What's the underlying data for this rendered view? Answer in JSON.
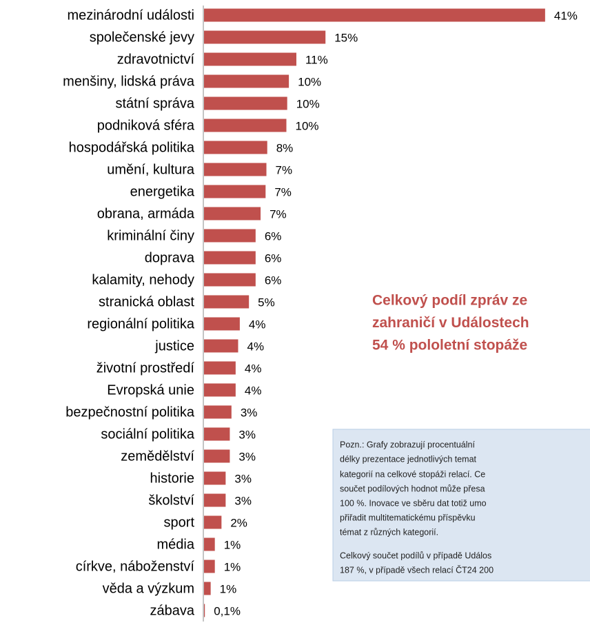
{
  "chart_data": {
    "type": "barh",
    "color": "#c0504d",
    "categories": [
      "mezinárodní události",
      "společenské jevy",
      "zdravotnictví",
      "menšiny, lidská práva",
      "státní správa",
      "podniková sféra",
      "hospodářská politika",
      "umění, kultura",
      "energetika",
      "obrana, armáda",
      "kriminální činy",
      "doprava",
      "kalamity, nehody",
      "stranická oblast",
      "regionální politika",
      "justice",
      "životní prostředí",
      "Evropská unie",
      "bezpečnostní politika",
      "sociální politika",
      "zemědělství",
      "historie",
      "školství",
      "sport",
      "média",
      "církve, náboženství",
      "věda a výzkum",
      "zábava"
    ],
    "values": [
      41,
      14.6,
      11.1,
      10.2,
      10.0,
      9.9,
      7.6,
      7.5,
      7.4,
      6.8,
      6.2,
      6.2,
      6.2,
      5.4,
      4.3,
      4.1,
      3.8,
      3.8,
      3.3,
      3.1,
      3.1,
      2.6,
      2.6,
      2.1,
      1.3,
      1.3,
      0.8,
      0.1
    ],
    "value_labels": [
      "41%",
      "15%",
      "11%",
      "10%",
      "10%",
      "10%",
      "8%",
      "7%",
      "7%",
      "7%",
      "6%",
      "6%",
      "6%",
      "5%",
      "4%",
      "4%",
      "4%",
      "4%",
      "3%",
      "3%",
      "3%",
      "3%",
      "3%",
      "2%",
      "1%",
      "1%",
      "1%",
      "0,1%"
    ],
    "headline": [
      "Celkový podíl zpráv ze",
      "zahraničí v Událostech",
      "54 % pololetní stopáže"
    ],
    "note": [
      "Pozn.: Grafy zobrazují procentuální",
      "délky prezentace jednotlivých temat",
      "kategorií na celkové stopáži relací. Ce",
      "součet podílových hodnot může přesa",
      "100 %. Inovace ve sběru dat totiž umo",
      "přiřadit multitematickému příspěvku",
      "témat z různých kategorií.",
      "Celkový součet podílů v případě Událos",
      "187 %, v případě všech relací ČT24 200"
    ]
  }
}
